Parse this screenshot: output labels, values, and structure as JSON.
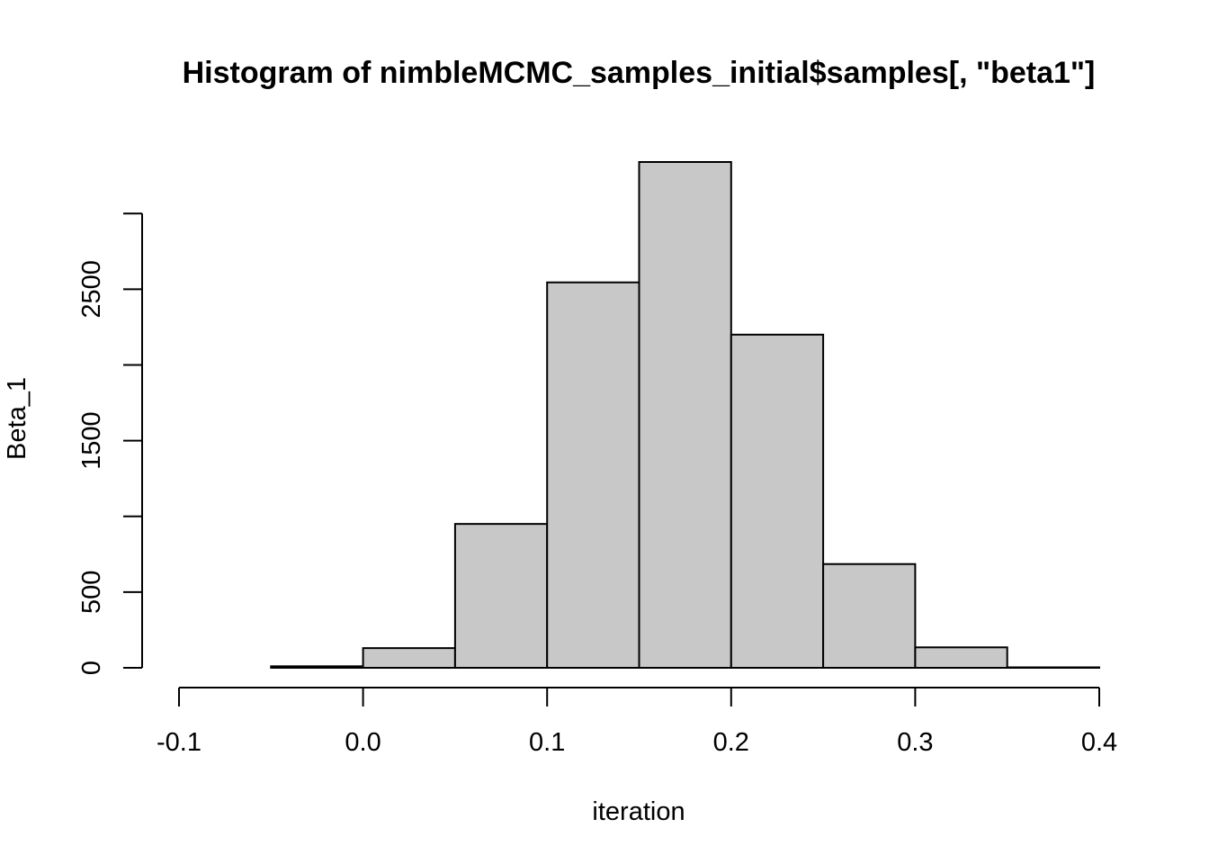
{
  "chart_data": {
    "type": "bar",
    "title": "Histogram of nimbleMCMC_samples_initial$samples[, \"beta1\"]",
    "xlabel": "iteration",
    "ylabel": "Beta_1",
    "bins": [
      {
        "x0": -0.1,
        "x1": -0.05,
        "count": 0
      },
      {
        "x0": -0.05,
        "x1": 0.0,
        "count": 10
      },
      {
        "x0": 0.0,
        "x1": 0.05,
        "count": 130
      },
      {
        "x0": 0.05,
        "x1": 0.1,
        "count": 950
      },
      {
        "x0": 0.1,
        "x1": 0.15,
        "count": 2545
      },
      {
        "x0": 0.15,
        "x1": 0.2,
        "count": 3340
      },
      {
        "x0": 0.2,
        "x1": 0.25,
        "count": 2200
      },
      {
        "x0": 0.25,
        "x1": 0.3,
        "count": 685
      },
      {
        "x0": 0.3,
        "x1": 0.35,
        "count": 135
      },
      {
        "x0": 0.35,
        "x1": 0.4,
        "count": 3
      }
    ],
    "xlim": [
      -0.1,
      0.4
    ],
    "ylim": [
      0,
      3340
    ],
    "x_ticks": [
      -0.1,
      0.0,
      0.1,
      0.2,
      0.3,
      0.4
    ],
    "x_tick_labels": [
      "-0.1",
      "0.0",
      "0.1",
      "0.2",
      "0.3",
      "0.4"
    ],
    "y_ticks": [
      0,
      500,
      1000,
      1500,
      2000,
      2500,
      3000
    ],
    "y_tick_labels": [
      "0",
      "500",
      "",
      "1500",
      "",
      "2500",
      ""
    ],
    "bar_color": "#c8c8c8",
    "edge_color": "#000000",
    "grid": false
  }
}
